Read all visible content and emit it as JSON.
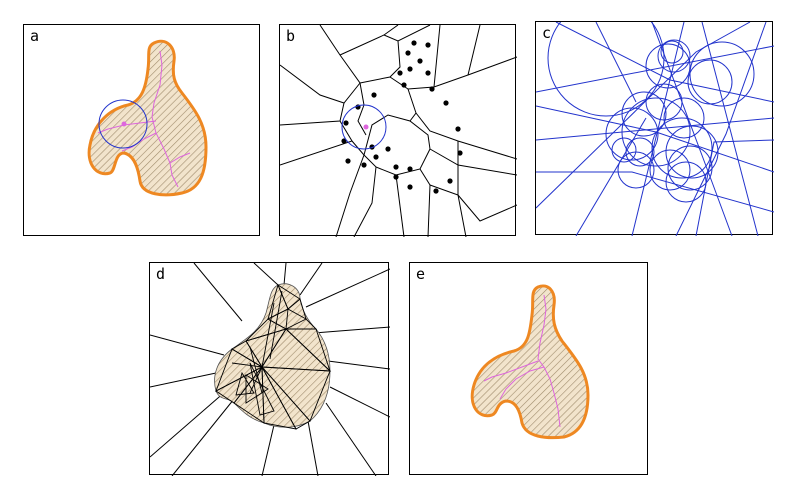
{
  "panels": [
    {
      "id": "a",
      "label": "a"
    },
    {
      "id": "b",
      "label": "b"
    },
    {
      "id": "c",
      "label": "c"
    },
    {
      "id": "d",
      "label": "d"
    },
    {
      "id": "e",
      "label": "e"
    }
  ],
  "colors": {
    "outline": "#ee8822",
    "fill": "#f2e4cc",
    "hatch": "#a08c6c",
    "skeleton": "#dd66dd",
    "circle": "#2233cc",
    "ink": "#000000"
  }
}
